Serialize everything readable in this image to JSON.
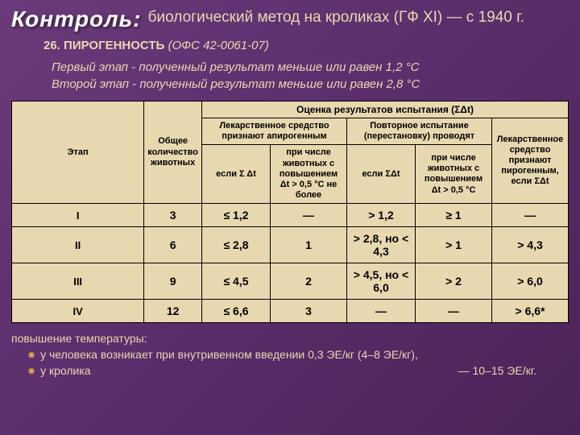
{
  "header": {
    "control": "Контроль:",
    "title": "биологический метод на кроликах (ГФ XI) — с 1940 г."
  },
  "subheading": {
    "num": "26.",
    "caps": "ПИРОГЕННОСТЬ",
    "paren": "(ОФС 42-0061-07)"
  },
  "etap": {
    "line1": "Первый этап - полученный результат меньше или равен 1,2 °С",
    "line2": "Второй этап - полученный результат меньше или равен 2,8 °С"
  },
  "table": {
    "top_header": "Оценка результатов испытания (ΣΔt)",
    "col_etap": "Этап",
    "col_count": "Общее количество животных",
    "group1_title": "Лекарственное средство признают апирогенным",
    "group2_title": "Повторное испытание (перестановку) проводят",
    "group3_title": "Лекарственное средство признают пирогенным, если ΣΔt",
    "sub_a": "если Σ Δt",
    "sub_b": "при числе животных с повышением Δt > 0,5 °С не более",
    "sub_c": "если ΣΔt",
    "sub_d": "при числе животных с повышением Δt > 0,5 °С",
    "rows": [
      {
        "stage": "I",
        "n": "3",
        "a": "≤ 1,2",
        "b": "—",
        "c": "> 1,2",
        "d": "≥ 1",
        "e": "—"
      },
      {
        "stage": "II",
        "n": "6",
        "a": "≤ 2,8",
        "b": "1",
        "c": "> 2,8, но < 4,3",
        "d": "> 1",
        "e": "> 4,3"
      },
      {
        "stage": "III",
        "n": "9",
        "a": "≤ 4,5",
        "b": "2",
        "c": "> 4,5, но < 6,0",
        "d": "> 2",
        "e": "> 6,0"
      },
      {
        "stage": "IV",
        "n": "12",
        "a": "≤ 6,6",
        "b": "3",
        "c": "—",
        "d": "—",
        "e": "> 6,6*"
      }
    ]
  },
  "footer": {
    "intro": "повышение температуры:",
    "l1": "у человека возникает при внутривенном введении 0,3 ЭЕ/кг (4–8 ЭЕ/кг),",
    "l2a": "у кролика",
    "l2b": "— 10–15 ЭЕ/кг."
  }
}
